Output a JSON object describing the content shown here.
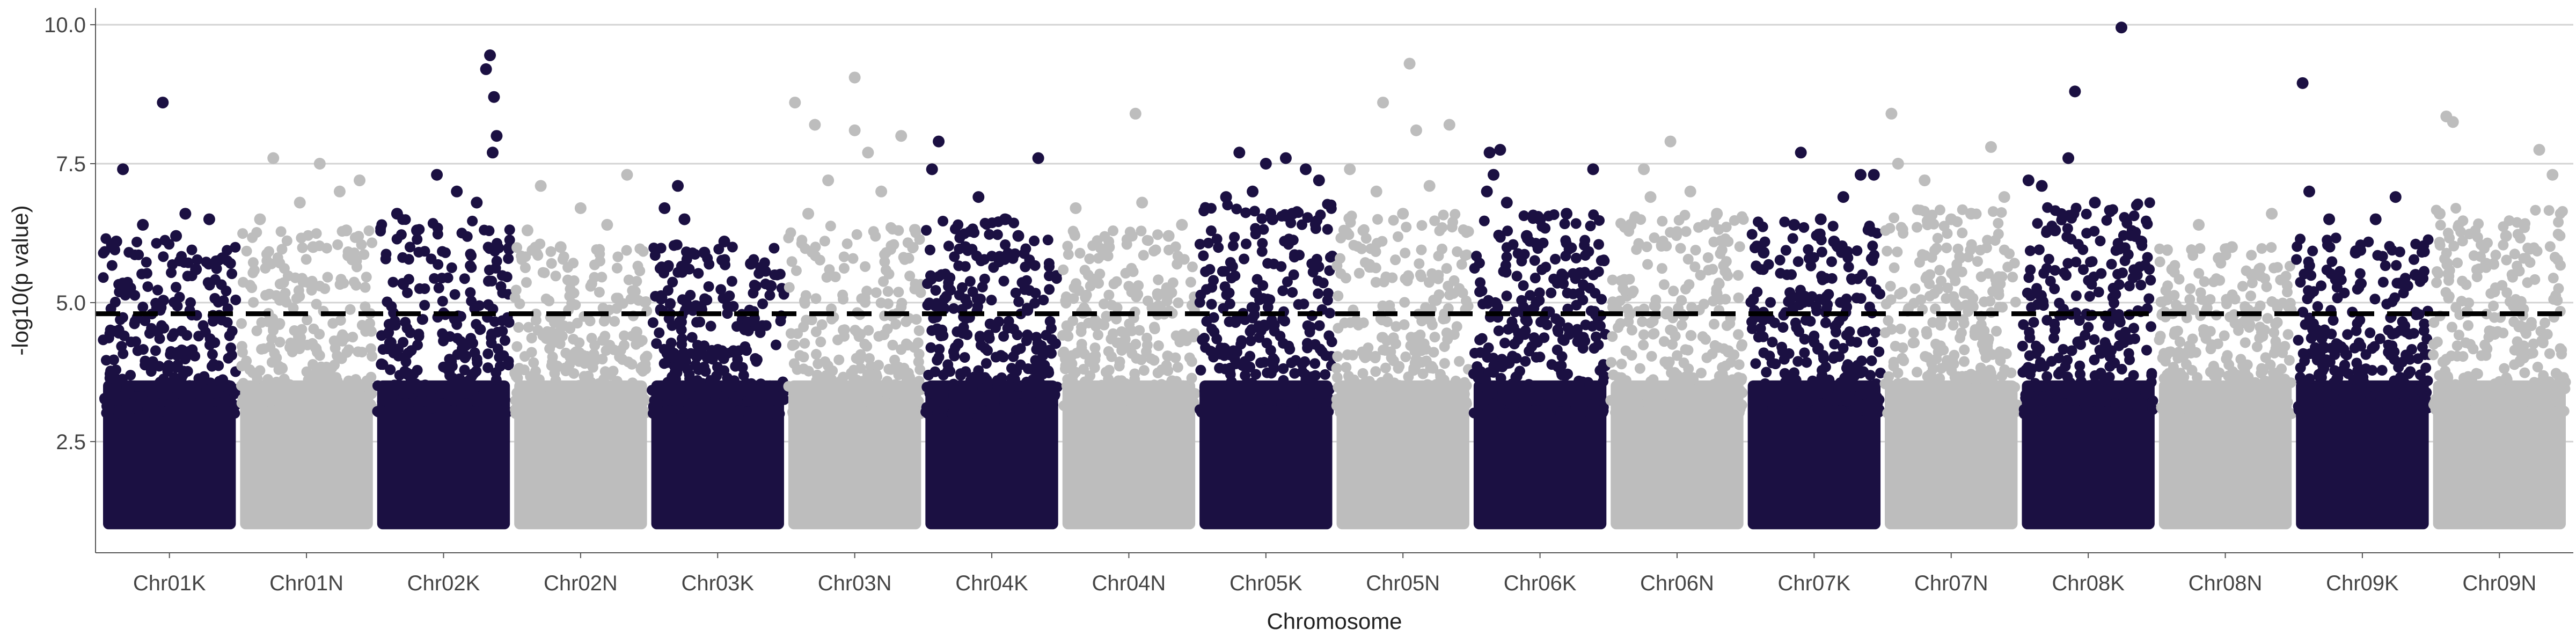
{
  "chart_data": {
    "type": "scatter",
    "title": "",
    "xlabel": "Chromosome",
    "ylabel": "-log10(p value)",
    "ylim": [
      0.5,
      10.3
    ],
    "yticks": [
      2.5,
      5.0,
      7.5,
      10.0
    ],
    "ytick_labels": [
      "2.5",
      "5.0",
      "7.5",
      "10.0"
    ],
    "grid": "major horizontal gridlines only",
    "legend": "none",
    "threshold": 4.8,
    "threshold_style": "dashed black",
    "point_min": 1.0,
    "colors": {
      "odd": "#1b1042",
      "even": "#bdbdbd",
      "threshold": "#000000",
      "grid": "#d3d3d3"
    },
    "categories": [
      "Chr01K",
      "Chr01N",
      "Chr02K",
      "Chr02N",
      "Chr03K",
      "Chr03N",
      "Chr04K",
      "Chr04N",
      "Chr05K",
      "Chr05N",
      "Chr06K",
      "Chr06N",
      "Chr07K",
      "Chr07N",
      "Chr08K",
      "Chr08N",
      "Chr09K",
      "Chr09N"
    ],
    "series": [
      {
        "values": [
          [
            0.15,
            7.4
          ],
          [
            0.45,
            8.6
          ],
          [
            0.62,
            6.6
          ],
          [
            0.3,
            6.4
          ],
          [
            0.8,
            6.5
          ],
          [
            0.55,
            6.2
          ],
          [
            0.1,
            6.1
          ],
          [
            0.9,
            5.8
          ],
          [
            0.7,
            5.6
          ]
        ],
        "body_max": 5.4
      },
      {
        "values": [
          [
            0.25,
            7.6
          ],
          [
            0.6,
            7.5
          ],
          [
            0.75,
            7.0
          ],
          [
            0.45,
            6.8
          ],
          [
            0.9,
            7.2
          ],
          [
            0.15,
            6.5
          ],
          [
            0.55,
            6.0
          ],
          [
            0.8,
            6.3
          ]
        ],
        "body_max": 5.5
      },
      {
        "values": [
          [
            0.45,
            7.3
          ],
          [
            0.82,
            9.2
          ],
          [
            0.85,
            9.45
          ],
          [
            0.88,
            8.7
          ],
          [
            0.9,
            8.0
          ],
          [
            0.87,
            7.7
          ],
          [
            0.15,
            6.6
          ],
          [
            0.6,
            7.0
          ],
          [
            0.75,
            6.8
          ],
          [
            0.3,
            6.3
          ]
        ],
        "body_max": 5.7
      },
      {
        "values": [
          [
            0.2,
            7.1
          ],
          [
            0.85,
            7.3
          ],
          [
            0.5,
            6.7
          ],
          [
            0.7,
            6.4
          ],
          [
            0.35,
            6.0
          ],
          [
            0.1,
            6.3
          ]
        ],
        "body_max": 5.3
      },
      {
        "values": [
          [
            0.2,
            7.1
          ],
          [
            0.1,
            6.7
          ],
          [
            0.25,
            6.5
          ],
          [
            0.55,
            6.1
          ],
          [
            0.75,
            5.7
          ],
          [
            0.4,
            5.9
          ],
          [
            0.9,
            5.3
          ]
        ],
        "body_max": 5.3
      },
      {
        "values": [
          [
            0.05,
            8.6
          ],
          [
            0.2,
            8.2
          ],
          [
            0.5,
            9.05
          ],
          [
            0.5,
            8.1
          ],
          [
            0.6,
            7.7
          ],
          [
            0.85,
            8.0
          ],
          [
            0.3,
            7.2
          ],
          [
            0.7,
            7.0
          ],
          [
            0.15,
            6.6
          ]
        ],
        "body_max": 5.6
      },
      {
        "values": [
          [
            0.05,
            7.4
          ],
          [
            0.1,
            7.9
          ],
          [
            0.4,
            6.9
          ],
          [
            0.6,
            6.5
          ],
          [
            0.85,
            7.6
          ],
          [
            0.7,
            6.2
          ],
          [
            0.3,
            6.0
          ]
        ],
        "body_max": 5.7
      },
      {
        "values": [
          [
            0.55,
            8.4
          ],
          [
            0.1,
            6.7
          ],
          [
            0.6,
            6.8
          ],
          [
            0.8,
            6.2
          ],
          [
            0.35,
            6.0
          ],
          [
            0.9,
            6.4
          ]
        ],
        "body_max": 5.5
      },
      {
        "values": [
          [
            0.3,
            7.7
          ],
          [
            0.5,
            7.5
          ],
          [
            0.65,
            7.6
          ],
          [
            0.8,
            7.4
          ],
          [
            0.9,
            7.2
          ],
          [
            0.2,
            6.9
          ],
          [
            0.4,
            7.0
          ],
          [
            0.55,
            6.5
          ],
          [
            0.7,
            6.6
          ]
        ],
        "body_max": 6.0
      },
      {
        "values": [
          [
            0.35,
            8.6
          ],
          [
            0.55,
            9.3
          ],
          [
            0.6,
            8.1
          ],
          [
            0.85,
            8.2
          ],
          [
            0.1,
            7.4
          ],
          [
            0.3,
            7.0
          ],
          [
            0.7,
            7.1
          ],
          [
            0.5,
            6.6
          ]
        ],
        "body_max": 5.8
      },
      {
        "values": [
          [
            0.12,
            7.7
          ],
          [
            0.2,
            7.75
          ],
          [
            0.15,
            7.3
          ],
          [
            0.1,
            7.0
          ],
          [
            0.25,
            6.8
          ],
          [
            0.5,
            6.5
          ],
          [
            0.7,
            6.6
          ],
          [
            0.9,
            7.4
          ],
          [
            0.4,
            6.2
          ]
        ],
        "body_max": 5.8
      },
      {
        "values": [
          [
            0.25,
            7.4
          ],
          [
            0.45,
            7.9
          ],
          [
            0.6,
            7.0
          ],
          [
            0.8,
            6.6
          ],
          [
            0.3,
            6.9
          ],
          [
            0.15,
            6.4
          ]
        ],
        "body_max": 5.8
      },
      {
        "values": [
          [
            0.35,
            6.4
          ],
          [
            0.55,
            6.5
          ],
          [
            0.72,
            6.9
          ],
          [
            0.85,
            7.3
          ],
          [
            0.95,
            7.3
          ],
          [
            0.12,
            5.9
          ],
          [
            0.65,
            6.1
          ],
          [
            0.4,
            7.7
          ]
        ],
        "body_max": 5.7
      },
      {
        "values": [
          [
            0.05,
            8.4
          ],
          [
            0.3,
            7.2
          ],
          [
            0.8,
            7.8
          ],
          [
            0.1,
            7.5
          ],
          [
            0.5,
            6.5
          ],
          [
            0.65,
            6.6
          ],
          [
            0.9,
            6.9
          ]
        ],
        "body_max": 5.9
      },
      {
        "values": [
          [
            0.15,
            7.1
          ],
          [
            0.35,
            7.6
          ],
          [
            0.4,
            8.8
          ],
          [
            0.75,
            9.95
          ],
          [
            0.55,
            6.8
          ],
          [
            0.25,
            6.3
          ],
          [
            0.9,
            6.1
          ],
          [
            0.05,
            7.2
          ]
        ],
        "body_max": 6.0
      },
      {
        "values": [
          [
            0.3,
            6.4
          ],
          [
            0.55,
            6.0
          ],
          [
            0.85,
            6.6
          ],
          [
            0.1,
            5.6
          ],
          [
            0.7,
            5.5
          ],
          [
            0.45,
            5.8
          ]
        ],
        "body_max": 5.2
      },
      {
        "values": [
          [
            0.05,
            8.95
          ],
          [
            0.1,
            7.0
          ],
          [
            0.25,
            6.5
          ],
          [
            0.45,
            5.9
          ],
          [
            0.75,
            6.9
          ],
          [
            0.6,
            6.5
          ],
          [
            0.9,
            5.5
          ]
        ],
        "body_max": 5.4
      },
      {
        "values": [
          [
            0.1,
            8.35
          ],
          [
            0.15,
            8.25
          ],
          [
            0.8,
            7.75
          ],
          [
            0.9,
            7.3
          ],
          [
            0.05,
            6.6
          ],
          [
            0.55,
            6.2
          ],
          [
            0.4,
            5.7
          ]
        ],
        "body_max": 5.9
      }
    ]
  }
}
